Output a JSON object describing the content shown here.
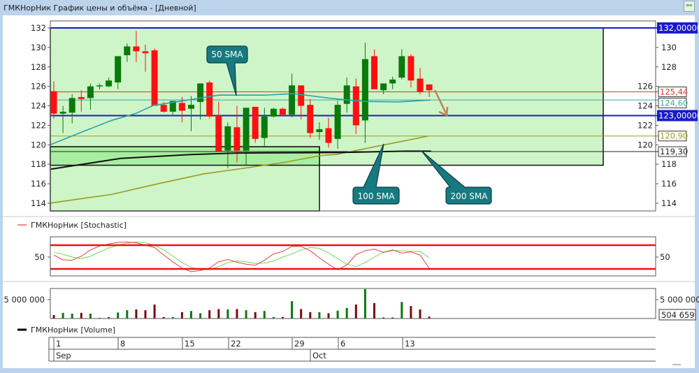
{
  "window": {
    "title": "ГМКНорНик График цены и объёма - [Дневной]",
    "corner_icon": "chart-link-icon"
  },
  "price_panel": {
    "left_ticks": [
      "114",
      "116",
      "118",
      "120",
      "122",
      "124",
      "126",
      "128",
      "130",
      "132"
    ],
    "right_ticks": [
      "114",
      "116",
      "118",
      "120",
      "122",
      "124",
      "126",
      "128",
      "130"
    ],
    "price_labels": [
      {
        "text": "132,00000",
        "value": 132.0,
        "color": "#1a1acc",
        "style": "filled"
      },
      {
        "text": "125,44",
        "value": 125.44,
        "color": "#d43a2a",
        "style": "boxed"
      },
      {
        "text": "124,60",
        "value": 124.6,
        "color": "#3aa8a8",
        "style": "boxed"
      },
      {
        "text": "123,00000",
        "value": 123.0,
        "color": "#1a1acc",
        "style": "filled"
      },
      {
        "text": "120,90",
        "value": 120.9,
        "color": "#9a9a20",
        "style": "boxed"
      },
      {
        "text": "119,30",
        "value": 119.3,
        "color": "#222222",
        "style": "boxed"
      }
    ],
    "callouts": {
      "sma50": "50 SMA",
      "sma100": "100 SMA",
      "sma200": "200 SMA"
    },
    "callout_color": "#167a80",
    "arrow_color": "#c08060"
  },
  "stochastic_panel": {
    "legend": "ГМКНорНик [Stochastic]",
    "tick_left": "50",
    "tick_right": "50",
    "levels": [
      80,
      20
    ]
  },
  "volume_panel": {
    "tick_left": "5 000 000",
    "tick_right": "5 000 000",
    "last_label": "504 659",
    "legend": "ГМКНорНик [Volume]"
  },
  "date_axis": {
    "days": [
      "1",
      "8",
      "15",
      "22",
      "29",
      "6",
      "13"
    ],
    "months": [
      "Sep",
      "Oct"
    ]
  },
  "chart_data": [
    {
      "type": "candlestick",
      "ylim": [
        113,
        132.5
      ],
      "colors": {
        "up": "#0a7a0a",
        "down": "#ff1010"
      },
      "ohlc": [
        [
          125.5,
          126.5,
          122.7,
          123.2
        ],
        [
          123.2,
          124.0,
          121.2,
          123.4
        ],
        [
          123.3,
          125.2,
          122.2,
          124.8
        ],
        [
          124.9,
          125.6,
          123.4,
          124.7
        ],
        [
          124.8,
          126.3,
          123.6,
          126.0
        ],
        [
          126.0,
          126.3,
          125.7,
          126.1
        ],
        [
          126.0,
          126.9,
          125.9,
          126.6
        ],
        [
          126.4,
          129.1,
          125.7,
          129.1
        ],
        [
          129.2,
          130.4,
          128.5,
          130.1
        ],
        [
          130.1,
          131.7,
          128.5,
          129.6
        ],
        [
          129.6,
          130.3,
          127.5,
          129.4
        ],
        [
          129.7,
          129.9,
          124.0,
          124.0
        ],
        [
          124.1,
          124.4,
          123.3,
          123.4
        ],
        [
          123.4,
          124.5,
          123.1,
          124.5
        ],
        [
          124.3,
          124.9,
          122.3,
          123.5
        ],
        [
          123.7,
          125.0,
          121.4,
          124.1
        ],
        [
          124.4,
          126.3,
          122.6,
          126.3
        ],
        [
          126.4,
          126.6,
          122.7,
          122.9
        ],
        [
          123.0,
          124.4,
          119.3,
          119.3
        ],
        [
          119.4,
          122.3,
          117.6,
          121.9
        ],
        [
          121.8,
          124.0,
          118.2,
          119.4
        ],
        [
          119.4,
          123.8,
          117.9,
          123.8
        ],
        [
          123.9,
          123.9,
          120.2,
          120.6
        ],
        [
          120.7,
          123.8,
          119.9,
          122.9
        ],
        [
          122.9,
          123.8,
          122.8,
          123.7
        ],
        [
          123.7,
          123.8,
          123.0,
          123.1
        ],
        [
          123.1,
          127.3,
          122.8,
          126.1
        ],
        [
          126.1,
          126.1,
          122.6,
          124.0
        ],
        [
          124.1,
          124.7,
          120.7,
          121.2
        ],
        [
          121.3,
          122.3,
          120.5,
          121.6
        ],
        [
          121.7,
          122.8,
          119.7,
          120.2
        ],
        [
          120.6,
          124.5,
          119.6,
          124.1
        ],
        [
          124.2,
          126.9,
          123.3,
          126.1
        ],
        [
          126.0,
          126.8,
          121.1,
          122.0
        ],
        [
          122.5,
          130.5,
          120.2,
          128.8
        ],
        [
          129.1,
          129.8,
          125.7,
          125.7
        ],
        [
          125.6,
          126.3,
          125.2,
          126.3
        ],
        [
          126.3,
          127.0,
          125.7,
          126.7
        ],
        [
          126.9,
          129.8,
          126.7,
          129.1
        ],
        [
          129.1,
          129.3,
          125.9,
          126.6
        ],
        [
          126.8,
          127.9,
          125.2,
          125.4
        ],
        [
          126.2,
          126.2,
          124.9,
          125.6
        ]
      ],
      "sma": [
        {
          "name": "50 SMA",
          "color": "#2aa0a8",
          "points": [
            [
              -0.4,
              120.0
            ],
            [
              2.5,
              121.1
            ],
            [
              6.3,
              122.5
            ],
            [
              8.9,
              123.2
            ],
            [
              10.9,
              124.05
            ],
            [
              14,
              124.5
            ],
            [
              18,
              125.1
            ],
            [
              23.1,
              125.1
            ],
            [
              26.2,
              125.25
            ],
            [
              30,
              124.8
            ],
            [
              33.8,
              124.45
            ],
            [
              37.6,
              124.4
            ],
            [
              41.1,
              124.6
            ]
          ]
        },
        {
          "name": "100 SMA",
          "color": "#9a9a20",
          "points": [
            [
              -0.5,
              114.0
            ],
            [
              6.3,
              114.9
            ],
            [
              10.9,
              115.9
            ],
            [
              16.3,
              117.0
            ],
            [
              20.1,
              117.5
            ],
            [
              25.2,
              118.2
            ],
            [
              29.2,
              118.9
            ],
            [
              30.8,
              119.0
            ],
            [
              36.1,
              120.0
            ],
            [
              40.9,
              120.9
            ]
          ]
        },
        {
          "name": "200 SMA",
          "color": "#111111",
          "points": [
            [
              -0.3,
              117.5
            ],
            [
              7.3,
              118.6
            ],
            [
              15,
              119.0
            ],
            [
              20,
              119.15
            ],
            [
              30.8,
              119.2
            ],
            [
              38.4,
              119.35
            ],
            [
              41.2,
              119.35
            ]
          ]
        }
      ],
      "horizontal_lines": [
        132.0,
        125.44,
        124.6,
        123.0,
        120.9,
        119.3
      ],
      "zones": [
        {
          "from": 132,
          "to": 117.9,
          "color": "#cef5c8"
        },
        {
          "from": 119.8,
          "to": 113,
          "color": "#cef5c8"
        }
      ]
    },
    {
      "type": "line",
      "title": "ГМКНорНик [Stochastic]",
      "ylim": [
        0,
        100
      ],
      "series": [
        {
          "color": "#e04040",
          "values": [
            55,
            43,
            42,
            52,
            68,
            78,
            83,
            87,
            88,
            86,
            80,
            74,
            55,
            38,
            22,
            13,
            16,
            22,
            38,
            44,
            37,
            32,
            29,
            42,
            58,
            64,
            77,
            77,
            66,
            48,
            32,
            18,
            30,
            56,
            66,
            70,
            62,
            68,
            60,
            63,
            55,
            22
          ]
        },
        {
          "color": "#66dd55",
          "values": [
            62,
            57,
            50,
            46,
            52,
            63,
            73,
            80,
            85,
            88,
            86,
            80,
            68,
            52,
            36,
            24,
            18,
            18,
            26,
            36,
            40,
            38,
            34,
            35,
            40,
            50,
            58,
            68,
            74,
            72,
            60,
            46,
            32,
            26,
            36,
            50,
            62,
            66,
            66,
            64,
            64,
            48
          ]
        }
      ]
    },
    {
      "type": "bar",
      "title": "ГМКНорНик [Volume]",
      "ylim": [
        0,
        8000000
      ],
      "values": [
        900000,
        1500000,
        1300000,
        1500000,
        1300000,
        200000,
        400000,
        1600000,
        2200000,
        2400000,
        2200000,
        3700000,
        400000,
        400000,
        1700000,
        2000000,
        1400000,
        2200000,
        2500000,
        2400000,
        2500000,
        2200000,
        1700000,
        2000000,
        400000,
        400000,
        4600000,
        2500000,
        1700000,
        1700000,
        1400000,
        2100000,
        2800000,
        3700000,
        7800000,
        4100000,
        300000,
        300000,
        4400000,
        3300000,
        2400000,
        504659
      ],
      "colors": {
        "up": "#0a7a0a",
        "down": "#7a0a0a"
      }
    }
  ]
}
